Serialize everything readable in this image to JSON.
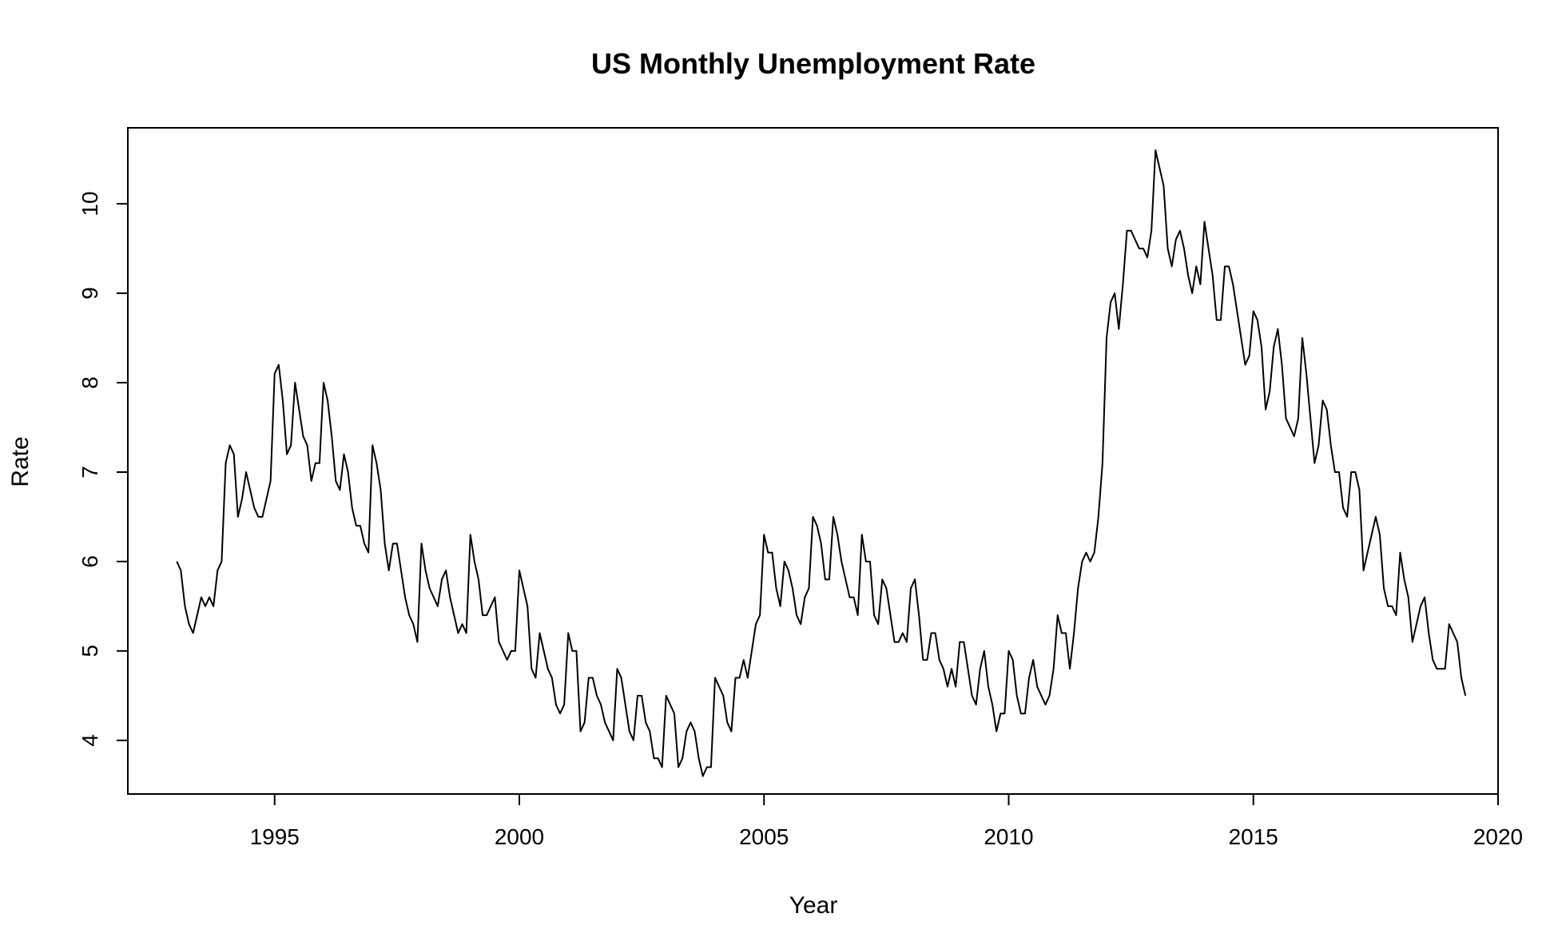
{
  "chart_data": {
    "type": "line",
    "title": "US Monthly Unemployment Rate",
    "xlabel": "Year",
    "ylabel": "Rate",
    "xlim": [
      1992.0,
      2020.0
    ],
    "ylim": [
      3.4,
      10.85
    ],
    "x_ticks": [
      1995,
      2000,
      2005,
      2010,
      2015,
      2020
    ],
    "y_ticks": [
      4,
      5,
      6,
      7,
      8,
      9,
      10
    ],
    "grid": false,
    "legend": "none",
    "line_color": "#000000",
    "series": [
      {
        "x_start": 1993.0,
        "x_step_months": 1,
        "values": [
          6.0,
          5.9,
          5.5,
          5.3,
          5.2,
          5.4,
          5.6,
          5.5,
          5.6,
          5.5,
          5.9,
          6.0,
          7.1,
          7.3,
          7.2,
          6.5,
          6.7,
          7.0,
          6.8,
          6.6,
          6.5,
          6.5,
          6.7,
          6.9,
          8.1,
          8.2,
          7.8,
          7.2,
          7.3,
          8.0,
          7.7,
          7.4,
          7.3,
          6.9,
          7.1,
          7.1,
          8.0,
          7.8,
          7.4,
          6.9,
          6.8,
          7.2,
          7.0,
          6.6,
          6.4,
          6.4,
          6.2,
          6.1,
          7.3,
          7.1,
          6.8,
          6.2,
          5.9,
          6.2,
          6.2,
          5.9,
          5.6,
          5.4,
          5.3,
          5.1,
          6.2,
          5.9,
          5.7,
          5.6,
          5.5,
          5.8,
          5.9,
          5.6,
          5.4,
          5.2,
          5.3,
          5.2,
          6.3,
          6.0,
          5.8,
          5.4,
          5.4,
          5.5,
          5.6,
          5.1,
          5.0,
          4.9,
          5.0,
          5.0,
          5.9,
          5.7,
          5.5,
          4.8,
          4.7,
          5.2,
          5.0,
          4.8,
          4.7,
          4.4,
          4.3,
          4.4,
          5.2,
          5.0,
          5.0,
          4.1,
          4.2,
          4.7,
          4.7,
          4.5,
          4.4,
          4.2,
          4.1,
          4.0,
          4.8,
          4.7,
          4.4,
          4.1,
          4.0,
          4.5,
          4.5,
          4.2,
          4.1,
          3.8,
          3.8,
          3.7,
          4.5,
          4.4,
          4.3,
          3.7,
          3.8,
          4.1,
          4.2,
          4.1,
          3.8,
          3.6,
          3.7,
          3.7,
          4.7,
          4.6,
          4.5,
          4.2,
          4.1,
          4.7,
          4.7,
          4.9,
          4.7,
          5.0,
          5.3,
          5.4,
          6.3,
          6.1,
          6.1,
          5.7,
          5.5,
          6.0,
          5.9,
          5.7,
          5.4,
          5.3,
          5.6,
          5.7,
          6.5,
          6.4,
          6.2,
          5.8,
          5.8,
          6.5,
          6.3,
          6.0,
          5.8,
          5.6,
          5.6,
          5.4,
          6.3,
          6.0,
          6.0,
          5.4,
          5.3,
          5.8,
          5.7,
          5.4,
          5.1,
          5.1,
          5.2,
          5.1,
          5.7,
          5.8,
          5.4,
          4.9,
          4.9,
          5.2,
          5.2,
          4.9,
          4.8,
          4.6,
          4.8,
          4.6,
          5.1,
          5.1,
          4.8,
          4.5,
          4.4,
          4.8,
          5.0,
          4.6,
          4.4,
          4.1,
          4.3,
          4.3,
          5.0,
          4.9,
          4.5,
          4.3,
          4.3,
          4.7,
          4.9,
          4.6,
          4.5,
          4.4,
          4.5,
          4.8,
          5.4,
          5.2,
          5.2,
          4.8,
          5.2,
          5.7,
          6.0,
          6.1,
          6.0,
          6.1,
          6.5,
          7.1,
          8.5,
          8.9,
          9.0,
          8.6,
          9.1,
          9.7,
          9.7,
          9.6,
          9.5,
          9.5,
          9.4,
          9.7,
          10.6,
          10.4,
          10.2,
          9.5,
          9.3,
          9.6,
          9.7,
          9.5,
          9.2,
          9.0,
          9.3,
          9.1,
          9.8,
          9.5,
          9.2,
          8.7,
          8.7,
          9.3,
          9.3,
          9.1,
          8.8,
          8.5,
          8.2,
          8.3,
          8.8,
          8.7,
          8.4,
          7.7,
          7.9,
          8.4,
          8.6,
          8.2,
          7.6,
          7.5,
          7.4,
          7.6,
          8.5,
          8.1,
          7.6,
          7.1,
          7.3,
          7.8,
          7.7,
          7.3,
          7.0,
          7.0,
          6.6,
          6.5,
          7.0,
          7.0,
          6.8,
          5.9,
          6.1,
          6.3,
          6.5,
          6.3,
          5.7,
          5.5,
          5.5,
          5.4,
          6.1,
          5.8,
          5.6,
          5.1,
          5.3,
          5.5,
          5.6,
          5.2,
          4.9,
          4.8,
          4.8,
          4.8,
          5.3,
          5.2,
          5.1,
          4.7,
          4.5
        ]
      }
    ]
  }
}
